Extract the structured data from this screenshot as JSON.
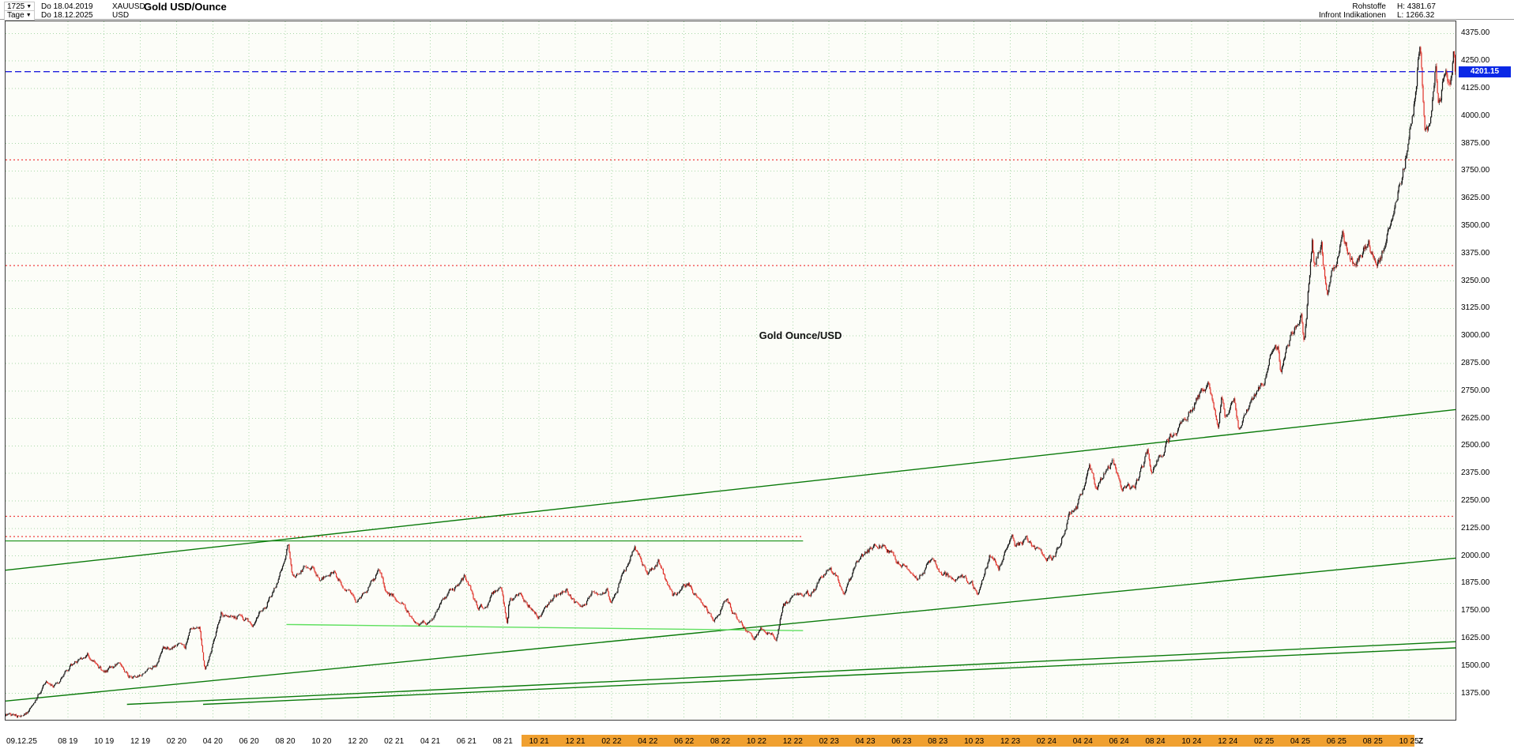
{
  "header": {
    "bars_count": "1725",
    "date_from": "Do 18.04.2019",
    "symbol": "XAUUSD",
    "title": "Gold USD/Ounce",
    "period": "Tage",
    "date_to": "Do 18.12.2025",
    "currency": "USD",
    "category": "Rohstoffe",
    "source": "Infront Indikationen",
    "high": "H: 4381.67",
    "low": "L: 1266.32"
  },
  "colors": {
    "grid": "#a8d8a8",
    "plot_bg": "#fcfdf8",
    "frame": "#3c3c3c",
    "up": "#141414",
    "down": "#e03028",
    "trend": "#0a7a0a",
    "trend_mid": "#2a9a2a",
    "trend_bright": "#5fe05f",
    "hline_red": "#f04040",
    "current_line": "#2020dd",
    "tag_bg": "#0a28e6",
    "tag_fg": "#ffffff",
    "band": "#f0a030"
  },
  "chart_data": {
    "type": "candlestick",
    "title": "Gold USD/Ounce",
    "symbol": "XAUUSD",
    "timeframe_label": "Tage",
    "annotation": "Gold Ounce/USD",
    "high": 4381.67,
    "low": 1266.32,
    "last_price": 4201.15,
    "last_price_label": "4201.15",
    "bars_rendered": 1725,
    "y_axis": {
      "label_min": 1375,
      "label_max": 4375,
      "step": 125,
      "price_at_top": 4430,
      "price_at_bottom": 1255,
      "format_decimals": 2
    },
    "x_axis": {
      "months_total": 80,
      "start_date": "18.04.2019",
      "end_date": "18.12.2025",
      "left_label": "09.12.25",
      "right_label": "Z",
      "tick_labels": [
        "08 19",
        "10 19",
        "12 19",
        "02 20",
        "04 20",
        "06 20",
        "08 20",
        "10 20",
        "12 20",
        "02 21",
        "04 21",
        "06 21",
        "08 21",
        "10 21",
        "12 21",
        "02 22",
        "04 22",
        "06 22",
        "08 22",
        "10 22",
        "12 22",
        "02 23",
        "04 23",
        "06 23",
        "08 23",
        "10 23",
        "12 23",
        "02 24",
        "04 24",
        "06 24",
        "08 24",
        "10 24",
        "12 24",
        "02 25",
        "04 25",
        "06 25",
        "08 25",
        "10 25"
      ],
      "highlight_band": {
        "start_frac": 0.356,
        "end_frac": 0.9715
      }
    },
    "series_anchors": [
      [
        0,
        1273
      ],
      [
        0.2,
        1267
      ],
      [
        1.1,
        1277
      ],
      [
        1.6,
        1330
      ],
      [
        2.2,
        1423
      ],
      [
        2.9,
        1414
      ],
      [
        3.6,
        1500
      ],
      [
        4.3,
        1537
      ],
      [
        4.5,
        1550
      ],
      [
        5.4,
        1472
      ],
      [
        6.2,
        1505
      ],
      [
        6.8,
        1456
      ],
      [
        7.6,
        1460
      ],
      [
        8.4,
        1517
      ],
      [
        8.7,
        1571
      ],
      [
        9.4,
        1589
      ],
      [
        9.9,
        1584
      ],
      [
        10.2,
        1660
      ],
      [
        10.7,
        1676
      ],
      [
        11.0,
        1471
      ],
      [
        11.9,
        1727
      ],
      [
        13.0,
        1732
      ],
      [
        13.6,
        1685
      ],
      [
        14.4,
        1781
      ],
      [
        15.3,
        1941
      ],
      [
        15.6,
        2058
      ],
      [
        15.8,
        1916
      ],
      [
        16.9,
        1958
      ],
      [
        17.3,
        1881
      ],
      [
        18.1,
        1922
      ],
      [
        18.7,
        1854
      ],
      [
        19.4,
        1777
      ],
      [
        20.4,
        1896
      ],
      [
        20.6,
        1946
      ],
      [
        21.0,
        1840
      ],
      [
        22.0,
        1784
      ],
      [
        22.7,
        1683
      ],
      [
        23.4,
        1708
      ],
      [
        24.1,
        1784
      ],
      [
        25.3,
        1901
      ],
      [
        26.0,
        1774
      ],
      [
        26.4,
        1761
      ],
      [
        26.9,
        1829
      ],
      [
        27.4,
        1828
      ],
      [
        27.68,
        1690
      ],
      [
        27.78,
        1795
      ],
      [
        28.5,
        1826
      ],
      [
        29.4,
        1726
      ],
      [
        30.1,
        1792
      ],
      [
        30.9,
        1864
      ],
      [
        31.4,
        1785
      ],
      [
        31.9,
        1766
      ],
      [
        32.4,
        1829
      ],
      [
        33.2,
        1846
      ],
      [
        33.35,
        1788
      ],
      [
        34.2,
        1934
      ],
      [
        34.7,
        2050
      ],
      [
        35.4,
        1920
      ],
      [
        36.0,
        1976
      ],
      [
        36.8,
        1812
      ],
      [
        37.7,
        1869
      ],
      [
        38.6,
        1766
      ],
      [
        39.1,
        1712
      ],
      [
        39.8,
        1800
      ],
      [
        40.4,
        1701
      ],
      [
        41.3,
        1617
      ],
      [
        41.8,
        1664
      ],
      [
        42.5,
        1632
      ],
      [
        42.9,
        1776
      ],
      [
        43.8,
        1810
      ],
      [
        44.4,
        1822
      ],
      [
        45.3,
        1929
      ],
      [
        45.5,
        1950
      ],
      [
        46.3,
        1828
      ],
      [
        47.1,
        1988
      ],
      [
        47.8,
        2038
      ],
      [
        48.5,
        2053
      ],
      [
        49.4,
        1960
      ],
      [
        50.4,
        1909
      ],
      [
        51.1,
        1975
      ],
      [
        52.1,
        1895
      ],
      [
        53.3,
        1874
      ],
      [
        53.6,
        1822
      ],
      [
        54.3,
        2004
      ],
      [
        54.8,
        1940
      ],
      [
        55.4,
        2070
      ],
      [
        55.52,
        2098
      ],
      [
        55.7,
        2032
      ],
      [
        56.3,
        2076
      ],
      [
        57.0,
        2008
      ],
      [
        57.9,
        1993
      ],
      [
        58.7,
        2178
      ],
      [
        59.1,
        2208
      ],
      [
        59.8,
        2398
      ],
      [
        60.2,
        2302
      ],
      [
        61.1,
        2438
      ],
      [
        61.6,
        2296
      ],
      [
        62.3,
        2302
      ],
      [
        63.0,
        2468
      ],
      [
        63.2,
        2368
      ],
      [
        64.1,
        2524
      ],
      [
        65.3,
        2668
      ],
      [
        66.4,
        2786
      ],
      [
        66.9,
        2565
      ],
      [
        67.1,
        2708
      ],
      [
        67.3,
        2632
      ],
      [
        67.8,
        2714
      ],
      [
        68.0,
        2588
      ],
      [
        68.4,
        2624
      ],
      [
        69.4,
        2794
      ],
      [
        69.8,
        2928
      ],
      [
        70.2,
        2948
      ],
      [
        70.35,
        2857
      ],
      [
        70.9,
        2984
      ],
      [
        71.3,
        3084
      ],
      [
        71.5,
        3128
      ],
      [
        71.65,
        2982
      ],
      [
        72.1,
        3424
      ],
      [
        72.2,
        3292
      ],
      [
        72.6,
        3428
      ],
      [
        72.9,
        3182
      ],
      [
        73.8,
        3448
      ],
      [
        74.4,
        3302
      ],
      [
        75.2,
        3428
      ],
      [
        75.45,
        3362
      ],
      [
        75.8,
        3346
      ],
      [
        76.5,
        3528
      ],
      [
        77.2,
        3788
      ],
      [
        77.7,
        4038
      ],
      [
        78.05,
        4372
      ],
      [
        78.3,
        3958
      ],
      [
        78.6,
        3932
      ],
      [
        78.9,
        4206
      ],
      [
        79.05,
        4068
      ],
      [
        79.15,
        4076
      ],
      [
        79.45,
        4232
      ],
      [
        79.7,
        4128
      ],
      [
        79.9,
        4286
      ],
      [
        80,
        4201.15
      ]
    ],
    "horizontal_lines": [
      {
        "price": 4201.15,
        "style": "dashed",
        "role": "last-price",
        "color_key": "current_line",
        "t0": 0,
        "t1": 80
      },
      {
        "price": 3800,
        "style": "dotted",
        "color_key": "hline_red",
        "t0": 0,
        "t1": 80
      },
      {
        "price": 3320,
        "style": "dotted",
        "color_key": "hline_red",
        "t0": 0,
        "t1": 80
      },
      {
        "price": 2180,
        "style": "dotted",
        "color_key": "hline_red",
        "t0": 0,
        "t1": 80
      },
      {
        "price": 2088,
        "style": "dotted",
        "color_key": "hline_red",
        "t0": 0,
        "t1": 44
      },
      {
        "price": 2068,
        "style": "solid",
        "color_key": "trend_mid",
        "t0": 0,
        "t1": 44
      }
    ],
    "trend_lines": [
      {
        "t0": 0,
        "p0": 1935,
        "t1": 80,
        "p1": 2665,
        "color_key": "trend"
      },
      {
        "t0": 0,
        "p0": 1340,
        "t1": 80,
        "p1": 1990,
        "color_key": "trend"
      },
      {
        "t0": 6.7,
        "p0": 1325,
        "t1": 80,
        "p1": 1610,
        "color_key": "trend"
      },
      {
        "t0": 10.9,
        "p0": 1325,
        "t1": 80,
        "p1": 1582,
        "color_key": "trend"
      },
      {
        "t0": 15.5,
        "p0": 1688,
        "t1": 44,
        "p1": 1660,
        "color_key": "trend_bright"
      }
    ]
  }
}
